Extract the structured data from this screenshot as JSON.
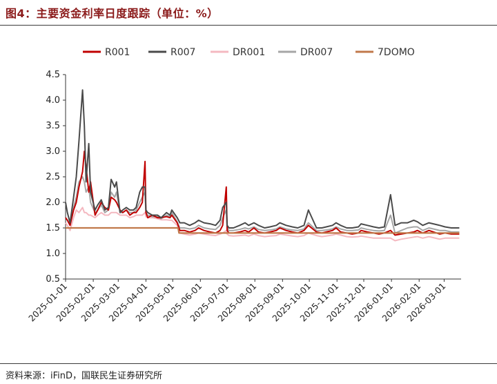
{
  "figure": {
    "title": "图4：主要资金利率日度跟踪（单位：%）",
    "source": "资料来源：iFinD，国联民生证券研究所"
  },
  "chart_data": {
    "type": "line",
    "title": "",
    "xlabel": "",
    "ylabel": "",
    "ylim": [
      0.5,
      4.5
    ],
    "yticks": [
      "0.5",
      "1.0",
      "1.5",
      "2.0",
      "2.5",
      "3.0",
      "3.5",
      "4.0",
      "4.5"
    ],
    "xlim": [
      "2025-01-01",
      "2026-03-20"
    ],
    "xticks": [
      "2025-01-01",
      "2025-02-01",
      "2025-03-01",
      "2025-04-01",
      "2025-05-01",
      "2025-06-01",
      "2025-07-01",
      "2025-08-01",
      "2025-09-01",
      "2025-10-01",
      "2025-11-01",
      "2025-12-01",
      "2026-01-01",
      "2026-02-01",
      "2026-03-01"
    ],
    "grid": false,
    "legend_position": "top",
    "series": [
      {
        "name": "R001",
        "color": "#c00000",
        "x": [
          "2025-01-01",
          "2025-01-03",
          "2025-01-06",
          "2025-01-10",
          "2025-01-13",
          "2025-01-16",
          "2025-01-20",
          "2025-01-22",
          "2025-01-24",
          "2025-01-27",
          "2025-01-29",
          "2025-02-03",
          "2025-02-06",
          "2025-02-10",
          "2025-02-14",
          "2025-02-18",
          "2025-02-21",
          "2025-02-25",
          "2025-02-27",
          "2025-03-03",
          "2025-03-06",
          "2025-03-10",
          "2025-03-14",
          "2025-03-18",
          "2025-03-21",
          "2025-03-25",
          "2025-03-28",
          "2025-03-31",
          "2025-04-01",
          "2025-04-03",
          "2025-04-08",
          "2025-04-14",
          "2025-04-18",
          "2025-04-24",
          "2025-04-28",
          "2025-04-30",
          "2025-05-06",
          "2025-05-09",
          "2025-05-14",
          "2025-05-20",
          "2025-05-26",
          "2025-05-30",
          "2025-06-05",
          "2025-06-12",
          "2025-06-18",
          "2025-06-23",
          "2025-06-26",
          "2025-06-30",
          "2025-07-01",
          "2025-07-03",
          "2025-07-08",
          "2025-07-15",
          "2025-07-21",
          "2025-07-25",
          "2025-07-31",
          "2025-08-05",
          "2025-08-12",
          "2025-08-18",
          "2025-08-25",
          "2025-08-29",
          "2025-09-05",
          "2025-09-12",
          "2025-09-18",
          "2025-09-25",
          "2025-09-30",
          "2025-10-09",
          "2025-10-15",
          "2025-10-20",
          "2025-10-27",
          "2025-10-31",
          "2025-11-05",
          "2025-11-12",
          "2025-11-18",
          "2025-11-25",
          "2025-11-28",
          "2025-12-05",
          "2025-12-12",
          "2025-12-18",
          "2025-12-24",
          "2025-12-31",
          "2026-01-05",
          "2026-01-12",
          "2026-01-19",
          "2026-01-26",
          "2026-01-30",
          "2026-02-05",
          "2026-02-12",
          "2026-02-24",
          "2026-03-02",
          "2026-03-09",
          "2026-03-18"
        ],
        "values": [
          1.7,
          1.65,
          1.55,
          1.85,
          2.0,
          2.3,
          2.6,
          3.0,
          2.7,
          2.2,
          2.4,
          1.75,
          1.85,
          2.0,
          1.9,
          1.85,
          2.1,
          2.05,
          2.0,
          1.85,
          1.8,
          1.85,
          1.75,
          1.8,
          1.8,
          1.9,
          2.0,
          2.8,
          1.8,
          1.7,
          1.75,
          1.7,
          1.7,
          1.72,
          1.7,
          1.75,
          1.6,
          1.45,
          1.45,
          1.42,
          1.45,
          1.5,
          1.45,
          1.42,
          1.4,
          1.45,
          1.55,
          2.3,
          1.45,
          1.4,
          1.4,
          1.42,
          1.45,
          1.42,
          1.5,
          1.42,
          1.4,
          1.42,
          1.45,
          1.5,
          1.45,
          1.42,
          1.4,
          1.45,
          1.55,
          1.42,
          1.4,
          1.42,
          1.45,
          1.5,
          1.42,
          1.4,
          1.38,
          1.4,
          1.45,
          1.42,
          1.4,
          1.38,
          1.4,
          1.45,
          1.36,
          1.38,
          1.4,
          1.42,
          1.45,
          1.4,
          1.45,
          1.38,
          1.4,
          1.38,
          1.38
        ]
      },
      {
        "name": "R007",
        "color": "#4a4a4a",
        "x": [
          "2025-01-01",
          "2025-01-03",
          "2025-01-06",
          "2025-01-10",
          "2025-01-13",
          "2025-01-16",
          "2025-01-20",
          "2025-01-22",
          "2025-01-24",
          "2025-01-27",
          "2025-01-29",
          "2025-02-03",
          "2025-02-06",
          "2025-02-10",
          "2025-02-14",
          "2025-02-18",
          "2025-02-21",
          "2025-02-25",
          "2025-02-27",
          "2025-03-03",
          "2025-03-06",
          "2025-03-10",
          "2025-03-14",
          "2025-03-18",
          "2025-03-21",
          "2025-03-25",
          "2025-03-28",
          "2025-03-31",
          "2025-04-01",
          "2025-04-03",
          "2025-04-08",
          "2025-04-14",
          "2025-04-18",
          "2025-04-24",
          "2025-04-28",
          "2025-04-30",
          "2025-05-06",
          "2025-05-09",
          "2025-05-14",
          "2025-05-20",
          "2025-05-26",
          "2025-05-30",
          "2025-06-05",
          "2025-06-12",
          "2025-06-18",
          "2025-06-23",
          "2025-06-26",
          "2025-06-30",
          "2025-07-01",
          "2025-07-03",
          "2025-07-08",
          "2025-07-15",
          "2025-07-21",
          "2025-07-25",
          "2025-07-31",
          "2025-08-05",
          "2025-08-12",
          "2025-08-18",
          "2025-08-25",
          "2025-08-29",
          "2025-09-05",
          "2025-09-12",
          "2025-09-18",
          "2025-09-25",
          "2025-09-30",
          "2025-10-09",
          "2025-10-15",
          "2025-10-20",
          "2025-10-27",
          "2025-10-31",
          "2025-11-05",
          "2025-11-12",
          "2025-11-18",
          "2025-11-25",
          "2025-11-28",
          "2025-12-05",
          "2025-12-12",
          "2025-12-18",
          "2025-12-24",
          "2025-12-31",
          "2026-01-05",
          "2026-01-12",
          "2026-01-19",
          "2026-01-26",
          "2026-01-30",
          "2026-02-05",
          "2026-02-12",
          "2026-02-24",
          "2026-03-02",
          "2026-03-09",
          "2026-03-18"
        ],
        "values": [
          2.0,
          1.8,
          1.6,
          2.1,
          2.5,
          3.2,
          4.2,
          3.5,
          2.4,
          3.15,
          2.2,
          1.85,
          1.95,
          2.05,
          1.85,
          1.9,
          2.45,
          2.3,
          2.4,
          1.8,
          1.85,
          1.9,
          1.85,
          1.85,
          1.9,
          2.2,
          2.3,
          2.3,
          1.85,
          1.8,
          1.75,
          1.75,
          1.7,
          1.8,
          1.75,
          1.85,
          1.7,
          1.6,
          1.6,
          1.55,
          1.6,
          1.65,
          1.6,
          1.58,
          1.55,
          1.65,
          1.9,
          2.0,
          1.55,
          1.5,
          1.5,
          1.55,
          1.6,
          1.55,
          1.6,
          1.55,
          1.5,
          1.52,
          1.55,
          1.6,
          1.55,
          1.52,
          1.5,
          1.55,
          1.85,
          1.5,
          1.5,
          1.52,
          1.55,
          1.6,
          1.55,
          1.5,
          1.5,
          1.52,
          1.58,
          1.55,
          1.52,
          1.5,
          1.52,
          2.15,
          1.55,
          1.6,
          1.6,
          1.65,
          1.62,
          1.55,
          1.6,
          1.55,
          1.52,
          1.5,
          1.5
        ]
      },
      {
        "name": "DR001",
        "color": "#f4b8c0",
        "x": [
          "2025-01-01",
          "2025-01-03",
          "2025-01-06",
          "2025-01-10",
          "2025-01-13",
          "2025-01-16",
          "2025-01-20",
          "2025-01-22",
          "2025-01-24",
          "2025-01-27",
          "2025-01-29",
          "2025-02-03",
          "2025-02-06",
          "2025-02-10",
          "2025-02-14",
          "2025-02-18",
          "2025-02-21",
          "2025-02-25",
          "2025-02-27",
          "2025-03-03",
          "2025-03-06",
          "2025-03-10",
          "2025-03-14",
          "2025-03-18",
          "2025-03-21",
          "2025-03-25",
          "2025-03-28",
          "2025-03-31",
          "2025-04-01",
          "2025-04-03",
          "2025-04-08",
          "2025-04-14",
          "2025-04-18",
          "2025-04-24",
          "2025-04-28",
          "2025-04-30",
          "2025-05-06",
          "2025-05-09",
          "2025-05-14",
          "2025-05-20",
          "2025-05-26",
          "2025-05-30",
          "2025-06-05",
          "2025-06-12",
          "2025-06-18",
          "2025-06-23",
          "2025-06-26",
          "2025-06-30",
          "2025-07-01",
          "2025-07-03",
          "2025-07-08",
          "2025-07-15",
          "2025-07-21",
          "2025-07-25",
          "2025-07-31",
          "2025-08-05",
          "2025-08-12",
          "2025-08-18",
          "2025-08-25",
          "2025-08-29",
          "2025-09-05",
          "2025-09-12",
          "2025-09-18",
          "2025-09-25",
          "2025-09-30",
          "2025-10-09",
          "2025-10-15",
          "2025-10-20",
          "2025-10-27",
          "2025-10-31",
          "2025-11-05",
          "2025-11-12",
          "2025-11-18",
          "2025-11-25",
          "2025-11-28",
          "2025-12-05",
          "2025-12-12",
          "2025-12-18",
          "2025-12-24",
          "2025-12-31",
          "2026-01-05",
          "2026-01-12",
          "2026-01-19",
          "2026-01-26",
          "2026-01-30",
          "2026-02-05",
          "2026-02-12",
          "2026-02-24",
          "2026-03-02",
          "2026-03-09",
          "2026-03-18"
        ],
        "values": [
          1.6,
          1.55,
          1.45,
          1.7,
          1.85,
          1.8,
          1.9,
          1.8,
          1.8,
          1.75,
          1.75,
          1.7,
          1.75,
          1.8,
          1.75,
          1.75,
          1.8,
          1.8,
          1.8,
          1.75,
          1.75,
          1.75,
          1.7,
          1.72,
          1.75,
          1.75,
          1.75,
          1.8,
          1.72,
          1.7,
          1.7,
          1.68,
          1.66,
          1.66,
          1.65,
          1.65,
          1.55,
          1.4,
          1.38,
          1.36,
          1.38,
          1.4,
          1.38,
          1.36,
          1.35,
          1.38,
          1.4,
          1.45,
          1.38,
          1.35,
          1.34,
          1.35,
          1.36,
          1.34,
          1.38,
          1.35,
          1.33,
          1.34,
          1.35,
          1.38,
          1.36,
          1.34,
          1.33,
          1.35,
          1.4,
          1.35,
          1.33,
          1.34,
          1.36,
          1.38,
          1.36,
          1.33,
          1.32,
          1.33,
          1.34,
          1.32,
          1.3,
          1.3,
          1.3,
          1.3,
          1.25,
          1.28,
          1.3,
          1.32,
          1.33,
          1.3,
          1.33,
          1.28,
          1.3,
          1.3,
          1.3
        ]
      },
      {
        "name": "DR007",
        "color": "#a6a6a6",
        "x": [
          "2025-01-01",
          "2025-01-03",
          "2025-01-06",
          "2025-01-10",
          "2025-01-13",
          "2025-01-16",
          "2025-01-20",
          "2025-01-22",
          "2025-01-24",
          "2025-01-27",
          "2025-01-29",
          "2025-02-03",
          "2025-02-06",
          "2025-02-10",
          "2025-02-14",
          "2025-02-18",
          "2025-02-21",
          "2025-02-25",
          "2025-02-27",
          "2025-03-03",
          "2025-03-06",
          "2025-03-10",
          "2025-03-14",
          "2025-03-18",
          "2025-03-21",
          "2025-03-25",
          "2025-03-28",
          "2025-03-31",
          "2025-04-01",
          "2025-04-03",
          "2025-04-08",
          "2025-04-14",
          "2025-04-18",
          "2025-04-24",
          "2025-04-28",
          "2025-04-30",
          "2025-05-06",
          "2025-05-09",
          "2025-05-14",
          "2025-05-20",
          "2025-05-26",
          "2025-05-30",
          "2025-06-05",
          "2025-06-12",
          "2025-06-18",
          "2025-06-23",
          "2025-06-26",
          "2025-06-30",
          "2025-07-01",
          "2025-07-03",
          "2025-07-08",
          "2025-07-15",
          "2025-07-21",
          "2025-07-25",
          "2025-07-31",
          "2025-08-05",
          "2025-08-12",
          "2025-08-18",
          "2025-08-25",
          "2025-08-29",
          "2025-09-05",
          "2025-09-12",
          "2025-09-18",
          "2025-09-25",
          "2025-09-30",
          "2025-10-09",
          "2025-10-15",
          "2025-10-20",
          "2025-10-27",
          "2025-10-31",
          "2025-11-05",
          "2025-11-12",
          "2025-11-18",
          "2025-11-25",
          "2025-11-28",
          "2025-12-05",
          "2025-12-12",
          "2025-12-18",
          "2025-12-24",
          "2025-12-31",
          "2026-01-05",
          "2026-01-12",
          "2026-01-19",
          "2026-01-26",
          "2026-01-30",
          "2026-02-05",
          "2026-02-12",
          "2026-02-24",
          "2026-03-02",
          "2026-03-09",
          "2026-03-18"
        ],
        "values": [
          1.7,
          1.65,
          1.55,
          1.9,
          2.1,
          2.4,
          2.5,
          2.4,
          2.2,
          2.3,
          2.0,
          1.8,
          1.85,
          1.95,
          1.8,
          1.85,
          2.2,
          2.1,
          2.2,
          1.8,
          1.8,
          1.85,
          1.8,
          1.8,
          1.85,
          2.0,
          2.1,
          2.2,
          1.8,
          1.75,
          1.72,
          1.72,
          1.68,
          1.75,
          1.72,
          1.8,
          1.62,
          1.5,
          1.5,
          1.48,
          1.5,
          1.55,
          1.5,
          1.48,
          1.47,
          1.55,
          1.7,
          1.85,
          1.5,
          1.45,
          1.45,
          1.47,
          1.5,
          1.48,
          1.52,
          1.47,
          1.45,
          1.46,
          1.48,
          1.52,
          1.48,
          1.46,
          1.45,
          1.48,
          1.6,
          1.45,
          1.45,
          1.46,
          1.48,
          1.52,
          1.48,
          1.45,
          1.45,
          1.46,
          1.5,
          1.47,
          1.45,
          1.44,
          1.45,
          1.75,
          1.4,
          1.45,
          1.5,
          1.52,
          1.52,
          1.45,
          1.5,
          1.45,
          1.45,
          1.42,
          1.42
        ]
      },
      {
        "name": "7DOMO",
        "color": "#c0784a",
        "x": [
          "2025-01-01",
          "2025-05-07",
          "2025-05-08",
          "2026-03-18"
        ],
        "values": [
          1.5,
          1.5,
          1.4,
          1.4
        ]
      }
    ]
  }
}
